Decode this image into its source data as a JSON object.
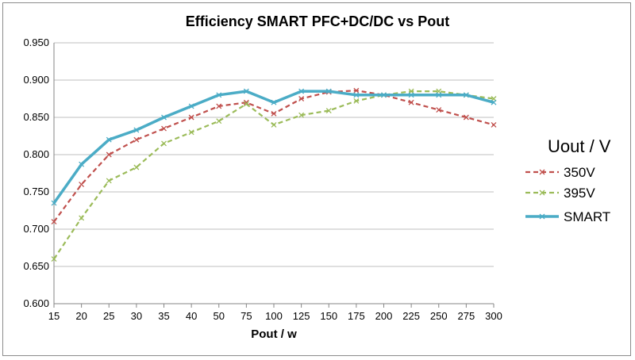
{
  "chart_data": {
    "type": "line",
    "title": "Efficiency SMART PFC+DC/DC vs Pout",
    "xlabel": "Pout / w",
    "ylabel": "",
    "categories": [
      "15",
      "20",
      "25",
      "30",
      "35",
      "40",
      "50",
      "75",
      "100",
      "125",
      "150",
      "175",
      "200",
      "225",
      "250",
      "275",
      "300"
    ],
    "ylim": [
      0.6,
      0.95
    ],
    "yticks": [
      "0.600",
      "0.650",
      "0.700",
      "0.750",
      "0.800",
      "0.850",
      "0.900",
      "0.950"
    ],
    "grid": "horizontal",
    "legend": {
      "title": "Uout / V",
      "placement": "right"
    },
    "series": [
      {
        "name": "350V",
        "color": "#c0504d",
        "style": "dashed",
        "marker": "x",
        "values": [
          0.71,
          0.76,
          0.8,
          0.82,
          0.835,
          0.85,
          0.865,
          0.87,
          0.855,
          0.875,
          0.884,
          0.886,
          0.88,
          0.87,
          0.86,
          0.85,
          0.84
        ]
      },
      {
        "name": "395V",
        "color": "#9bbb59",
        "style": "dashed",
        "marker": "x",
        "values": [
          0.66,
          0.715,
          0.765,
          0.783,
          0.815,
          0.83,
          0.845,
          0.868,
          0.84,
          0.853,
          0.859,
          0.872,
          0.88,
          0.885,
          0.885,
          0.88,
          0.875
        ]
      },
      {
        "name": "SMART",
        "color": "#4bacc6",
        "style": "solid",
        "marker": "x",
        "values": [
          0.735,
          0.787,
          0.82,
          0.833,
          0.85,
          0.865,
          0.88,
          0.885,
          0.87,
          0.885,
          0.885,
          0.88,
          0.88,
          0.88,
          0.88,
          0.88,
          0.87
        ]
      }
    ]
  }
}
